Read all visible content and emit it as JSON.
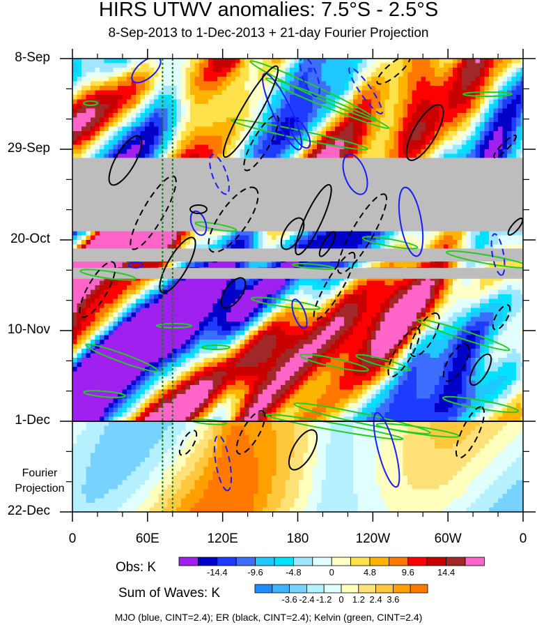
{
  "title": "HIRS UTWV anomalies: 7.5°S - 2.5°S",
  "subtitle": "8-Sep-2013 to 1-Dec-2013 + 21-day Fourier Projection",
  "chart_data": {
    "type": "heatmap",
    "title": "HIRS UTWV anomalies: 7.5°S - 2.5°S",
    "subtitle": "8-Sep-2013 to 1-Dec-2013 + 21-day Fourier Projection",
    "x_ticks": [
      "0",
      "60E",
      "120E",
      "180",
      "120W",
      "60W",
      "0"
    ],
    "x_tick_values": [
      0,
      60,
      120,
      180,
      240,
      300,
      360
    ],
    "y_ticks": [
      "8-Sep",
      "29-Sep",
      "20-Oct",
      "10-Nov",
      "1-Dec",
      "22-Dec"
    ],
    "y_tick_days": [
      0,
      21,
      42,
      63,
      84,
      105
    ],
    "xlim": [
      0,
      360
    ],
    "ylim_days": [
      0,
      105
    ],
    "observation_end_day": 84,
    "forecast_label": "Fourier Projection",
    "missing_data_periods_days": [
      [
        23,
        40
      ],
      [
        44,
        47
      ],
      [
        48.5,
        51
      ]
    ],
    "reference_longitudes": [
      72,
      80
    ],
    "obs_colorbar": {
      "title": "Obs: K",
      "tick_labels": [
        "-14.4",
        "-9.6",
        "-4.8",
        "0",
        "4.8",
        "9.6",
        "14.4"
      ],
      "levels": [
        -16.8,
        -14.4,
        -12.0,
        -9.6,
        -7.2,
        -4.8,
        -2.4,
        0,
        2.4,
        4.8,
        7.2,
        9.6,
        12.0,
        14.4,
        16.8
      ],
      "colors": [
        "#a020f0",
        "#0000c8",
        "#1e3cff",
        "#3c6eff",
        "#1ec8ff",
        "#00e1ff",
        "#a0e6ff",
        "#e1ffff",
        "#ffffc8",
        "#ffe14b",
        "#ffb400",
        "#ff7800",
        "#ff0000",
        "#c80000",
        "#a02828",
        "#ff64c8"
      ]
    },
    "waves_colorbar": {
      "title": "Sum of Waves: K",
      "tick_labels": [
        "-3.6",
        "-2.4",
        "-1.2",
        "0",
        "1.2",
        "2.4",
        "3.6"
      ],
      "levels": [
        -4.8,
        -3.6,
        -2.4,
        -1.2,
        0,
        1.2,
        2.4,
        3.6,
        4.8
      ],
      "colors": [
        "#1e8cff",
        "#3cb4ff",
        "#78d2ff",
        "#b4f0ff",
        "#e1ffff",
        "#ffffbe",
        "#ffe178",
        "#ffc83c",
        "#ffa000",
        "#ff7800"
      ]
    },
    "contour_legend": "MJO (blue, CINT=2.4); ER (black, CINT=2.4); Kelvin (green, CINT=2.4)",
    "series": [
      {
        "name": "MJO",
        "color": "#0000ff",
        "cint": 2.4
      },
      {
        "name": "ER",
        "color": "#000000",
        "cint": 2.4
      },
      {
        "name": "Kelvin",
        "color": "#00dd00",
        "cint": 2.4
      }
    ]
  },
  "colors": {
    "missing": "#bdbdbd",
    "forecast_bg": "#d9f4ff",
    "mjo": "#1a1aff",
    "er": "#000000",
    "kelvin": "#22cc22",
    "ref_line": "#117711"
  }
}
